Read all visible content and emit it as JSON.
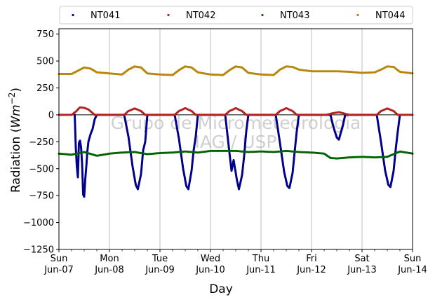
{
  "chart_data": {
    "type": "scatter",
    "xlabel": "Day",
    "ylabel_main": "Radiation (",
    "ylabel_unit": "Wm",
    "ylabel_exp": "−2",
    "ylabel_close": ")",
    "ylim": [
      -1250,
      800
    ],
    "yticks": [
      750,
      500,
      250,
      0,
      -250,
      -500,
      -750,
      -1000,
      -1250
    ],
    "ytick_labels": [
      "750",
      "500",
      "250",
      "0",
      "−250",
      "−500",
      "−750",
      "−1000",
      "−1250"
    ],
    "xlim": [
      "2020-06-07",
      "2020-06-14"
    ],
    "x_ticks": [
      {
        "date": "2020-06-07",
        "day": "Sun",
        "label": "Jun-07"
      },
      {
        "date": "2020-06-08",
        "day": "Mon",
        "label": "Jun-08"
      },
      {
        "date": "2020-06-09",
        "day": "Tue",
        "label": "Jun-09"
      },
      {
        "date": "2020-06-10",
        "day": "Wed",
        "label": "Jun-10"
      },
      {
        "date": "2020-06-11",
        "day": "Thu",
        "label": "Jun-11"
      },
      {
        "date": "2020-06-12",
        "day": "Fri",
        "label": "Jun-12"
      },
      {
        "date": "2020-06-13",
        "day": "Sat",
        "label": "Jun-13"
      },
      {
        "date": "2020-06-14",
        "day": "Sun",
        "label": "Jun-14"
      }
    ],
    "grid": "vertical at day ticks",
    "zero_line": true,
    "legend_placement": "top, outside plot, 4 columns",
    "watermark": [
      "Grupo de Micrometeorologia",
      "IAG / USP"
    ],
    "series": [
      {
        "name": "NT041",
        "color": "#00008b",
        "points": [
          [
            "2020-06-07 07:30",
            0
          ],
          [
            "2020-06-07 08:00",
            -300
          ],
          [
            "2020-06-07 08:30",
            -480
          ],
          [
            "2020-06-07 09:00",
            -580
          ],
          [
            "2020-06-07 09:30",
            -260
          ],
          [
            "2020-06-07 10:00",
            -240
          ],
          [
            "2020-06-07 10:30",
            -300
          ],
          [
            "2020-06-07 11:00",
            -450
          ],
          [
            "2020-06-07 11:30",
            -740
          ],
          [
            "2020-06-07 12:00",
            -760
          ],
          [
            "2020-06-07 12:30",
            -600
          ],
          [
            "2020-06-07 13:00",
            -480
          ],
          [
            "2020-06-07 13:30",
            -340
          ],
          [
            "2020-06-07 14:00",
            -250
          ],
          [
            "2020-06-07 15:00",
            -180
          ],
          [
            "2020-06-07 16:00",
            -130
          ],
          [
            "2020-06-07 17:00",
            -40
          ],
          [
            "2020-06-07 18:00",
            0
          ],
          [
            "2020-06-08 07:00",
            0
          ],
          [
            "2020-06-08 09:00",
            -200
          ],
          [
            "2020-06-08 11:00",
            -480
          ],
          [
            "2020-06-08 12:30",
            -650
          ],
          [
            "2020-06-08 13:30",
            -690
          ],
          [
            "2020-06-08 15:00",
            -550
          ],
          [
            "2020-06-08 16:00",
            -330
          ],
          [
            "2020-06-08 17:00",
            -250
          ],
          [
            "2020-06-08 18:00",
            0
          ],
          [
            "2020-06-09 07:00",
            0
          ],
          [
            "2020-06-09 09:00",
            -220
          ],
          [
            "2020-06-09 11:00",
            -500
          ],
          [
            "2020-06-09 12:30",
            -660
          ],
          [
            "2020-06-09 13:30",
            -690
          ],
          [
            "2020-06-09 15:00",
            -520
          ],
          [
            "2020-06-09 16:00",
            -330
          ],
          [
            "2020-06-09 17:00",
            -200
          ],
          [
            "2020-06-09 18:00",
            0
          ],
          [
            "2020-06-10 07:00",
            0
          ],
          [
            "2020-06-10 09:00",
            -350
          ],
          [
            "2020-06-10 10:00",
            -520
          ],
          [
            "2020-06-10 11:00",
            -420
          ],
          [
            "2020-06-10 12:30",
            -600
          ],
          [
            "2020-06-10 13:30",
            -690
          ],
          [
            "2020-06-10 15:00",
            -560
          ],
          [
            "2020-06-10 16:00",
            -380
          ],
          [
            "2020-06-10 17:00",
            -150
          ],
          [
            "2020-06-10 18:00",
            0
          ],
          [
            "2020-06-11 07:00",
            0
          ],
          [
            "2020-06-11 09:00",
            -260
          ],
          [
            "2020-06-11 11:00",
            -530
          ],
          [
            "2020-06-11 12:30",
            -660
          ],
          [
            "2020-06-11 13:30",
            -680
          ],
          [
            "2020-06-11 15:00",
            -540
          ],
          [
            "2020-06-11 16:00",
            -340
          ],
          [
            "2020-06-11 17:00",
            -150
          ],
          [
            "2020-06-11 18:00",
            0
          ],
          [
            "2020-06-12 09:00",
            0
          ],
          [
            "2020-06-12 10:00",
            -80
          ],
          [
            "2020-06-12 11:00",
            -150
          ],
          [
            "2020-06-12 12:00",
            -210
          ],
          [
            "2020-06-12 13:00",
            -230
          ],
          [
            "2020-06-12 14:00",
            -160
          ],
          [
            "2020-06-12 15:00",
            -90
          ],
          [
            "2020-06-12 16:00",
            0
          ],
          [
            "2020-06-13 07:00",
            0
          ],
          [
            "2020-06-13 09:00",
            -250
          ],
          [
            "2020-06-13 11:00",
            -520
          ],
          [
            "2020-06-13 12:30",
            -650
          ],
          [
            "2020-06-13 13:30",
            -670
          ],
          [
            "2020-06-13 15:00",
            -520
          ],
          [
            "2020-06-13 16:00",
            -320
          ],
          [
            "2020-06-13 17:00",
            -150
          ],
          [
            "2020-06-13 18:00",
            0
          ]
        ]
      },
      {
        "name": "NT042",
        "color": "#b22222",
        "points": [
          [
            "2020-06-07 00:00",
            0
          ],
          [
            "2020-06-07 06:00",
            0
          ],
          [
            "2020-06-07 08:00",
            30
          ],
          [
            "2020-06-07 10:00",
            70
          ],
          [
            "2020-06-07 12:00",
            65
          ],
          [
            "2020-06-07 14:00",
            50
          ],
          [
            "2020-06-07 17:00",
            0
          ],
          [
            "2020-06-08 07:00",
            0
          ],
          [
            "2020-06-08 09:00",
            35
          ],
          [
            "2020-06-08 12:00",
            60
          ],
          [
            "2020-06-08 15:00",
            35
          ],
          [
            "2020-06-08 17:00",
            0
          ],
          [
            "2020-06-09 07:00",
            0
          ],
          [
            "2020-06-09 09:00",
            35
          ],
          [
            "2020-06-09 12:00",
            62
          ],
          [
            "2020-06-09 15:00",
            35
          ],
          [
            "2020-06-09 17:00",
            0
          ],
          [
            "2020-06-10 07:00",
            0
          ],
          [
            "2020-06-10 09:00",
            35
          ],
          [
            "2020-06-10 12:00",
            62
          ],
          [
            "2020-06-10 15:00",
            35
          ],
          [
            "2020-06-10 17:00",
            0
          ],
          [
            "2020-06-11 07:00",
            0
          ],
          [
            "2020-06-11 09:00",
            35
          ],
          [
            "2020-06-11 12:00",
            62
          ],
          [
            "2020-06-11 15:00",
            35
          ],
          [
            "2020-06-11 17:00",
            0
          ],
          [
            "2020-06-12 07:00",
            0
          ],
          [
            "2020-06-12 10:00",
            15
          ],
          [
            "2020-06-12 13:00",
            25
          ],
          [
            "2020-06-12 16:00",
            10
          ],
          [
            "2020-06-12 18:00",
            0
          ],
          [
            "2020-06-13 07:00",
            0
          ],
          [
            "2020-06-13 09:00",
            35
          ],
          [
            "2020-06-13 12:00",
            60
          ],
          [
            "2020-06-13 15:00",
            35
          ],
          [
            "2020-06-13 17:00",
            0
          ],
          [
            "2020-06-14 00:00",
            0
          ]
        ]
      },
      {
        "name": "NT043",
        "color": "#006400",
        "points": [
          [
            "2020-06-07 00:00",
            -360
          ],
          [
            "2020-06-07 06:00",
            -370
          ],
          [
            "2020-06-07 12:00",
            -345
          ],
          [
            "2020-06-07 18:00",
            -380
          ],
          [
            "2020-06-08 00:00",
            -360
          ],
          [
            "2020-06-08 06:00",
            -350
          ],
          [
            "2020-06-08 12:00",
            -345
          ],
          [
            "2020-06-08 18:00",
            -365
          ],
          [
            "2020-06-09 00:00",
            -355
          ],
          [
            "2020-06-09 06:00",
            -350
          ],
          [
            "2020-06-09 12:00",
            -340
          ],
          [
            "2020-06-09 18:00",
            -350
          ],
          [
            "2020-06-10 00:00",
            -335
          ],
          [
            "2020-06-10 06:00",
            -335
          ],
          [
            "2020-06-10 12:00",
            -335
          ],
          [
            "2020-06-10 18:00",
            -345
          ],
          [
            "2020-06-11 00:00",
            -340
          ],
          [
            "2020-06-11 06:00",
            -345
          ],
          [
            "2020-06-11 12:00",
            -335
          ],
          [
            "2020-06-11 18:00",
            -345
          ],
          [
            "2020-06-12 00:00",
            -350
          ],
          [
            "2020-06-12 06:00",
            -360
          ],
          [
            "2020-06-12 09:00",
            -400
          ],
          [
            "2020-06-12 12:00",
            -405
          ],
          [
            "2020-06-12 18:00",
            -395
          ],
          [
            "2020-06-13 00:00",
            -390
          ],
          [
            "2020-06-13 06:00",
            -395
          ],
          [
            "2020-06-13 12:00",
            -390
          ],
          [
            "2020-06-13 18:00",
            -340
          ],
          [
            "2020-06-14 00:00",
            -360
          ]
        ]
      },
      {
        "name": "NT044",
        "color": "#b8860b",
        "points": [
          [
            "2020-06-07 00:00",
            380
          ],
          [
            "2020-06-07 06:00",
            380
          ],
          [
            "2020-06-07 09:00",
            410
          ],
          [
            "2020-06-07 12:00",
            440
          ],
          [
            "2020-06-07 15:00",
            430
          ],
          [
            "2020-06-07 18:00",
            395
          ],
          [
            "2020-06-08 00:00",
            385
          ],
          [
            "2020-06-08 06:00",
            375
          ],
          [
            "2020-06-08 09:00",
            420
          ],
          [
            "2020-06-08 12:00",
            450
          ],
          [
            "2020-06-08 15:00",
            440
          ],
          [
            "2020-06-08 18:00",
            385
          ],
          [
            "2020-06-09 00:00",
            375
          ],
          [
            "2020-06-09 06:00",
            370
          ],
          [
            "2020-06-09 09:00",
            415
          ],
          [
            "2020-06-09 12:00",
            450
          ],
          [
            "2020-06-09 15:00",
            440
          ],
          [
            "2020-06-09 18:00",
            395
          ],
          [
            "2020-06-10 00:00",
            375
          ],
          [
            "2020-06-10 06:00",
            370
          ],
          [
            "2020-06-10 09:00",
            415
          ],
          [
            "2020-06-10 12:00",
            450
          ],
          [
            "2020-06-10 15:00",
            440
          ],
          [
            "2020-06-10 18:00",
            390
          ],
          [
            "2020-06-11 00:00",
            375
          ],
          [
            "2020-06-11 06:00",
            370
          ],
          [
            "2020-06-11 09:00",
            420
          ],
          [
            "2020-06-11 12:00",
            450
          ],
          [
            "2020-06-11 15:00",
            445
          ],
          [
            "2020-06-11 18:00",
            420
          ],
          [
            "2020-06-12 00:00",
            405
          ],
          [
            "2020-06-12 06:00",
            405
          ],
          [
            "2020-06-12 12:00",
            405
          ],
          [
            "2020-06-12 18:00",
            400
          ],
          [
            "2020-06-13 00:00",
            390
          ],
          [
            "2020-06-13 06:00",
            395
          ],
          [
            "2020-06-13 09:00",
            420
          ],
          [
            "2020-06-13 12:00",
            450
          ],
          [
            "2020-06-13 15:00",
            445
          ],
          [
            "2020-06-13 18:00",
            400
          ],
          [
            "2020-06-14 00:00",
            385
          ]
        ]
      }
    ]
  }
}
